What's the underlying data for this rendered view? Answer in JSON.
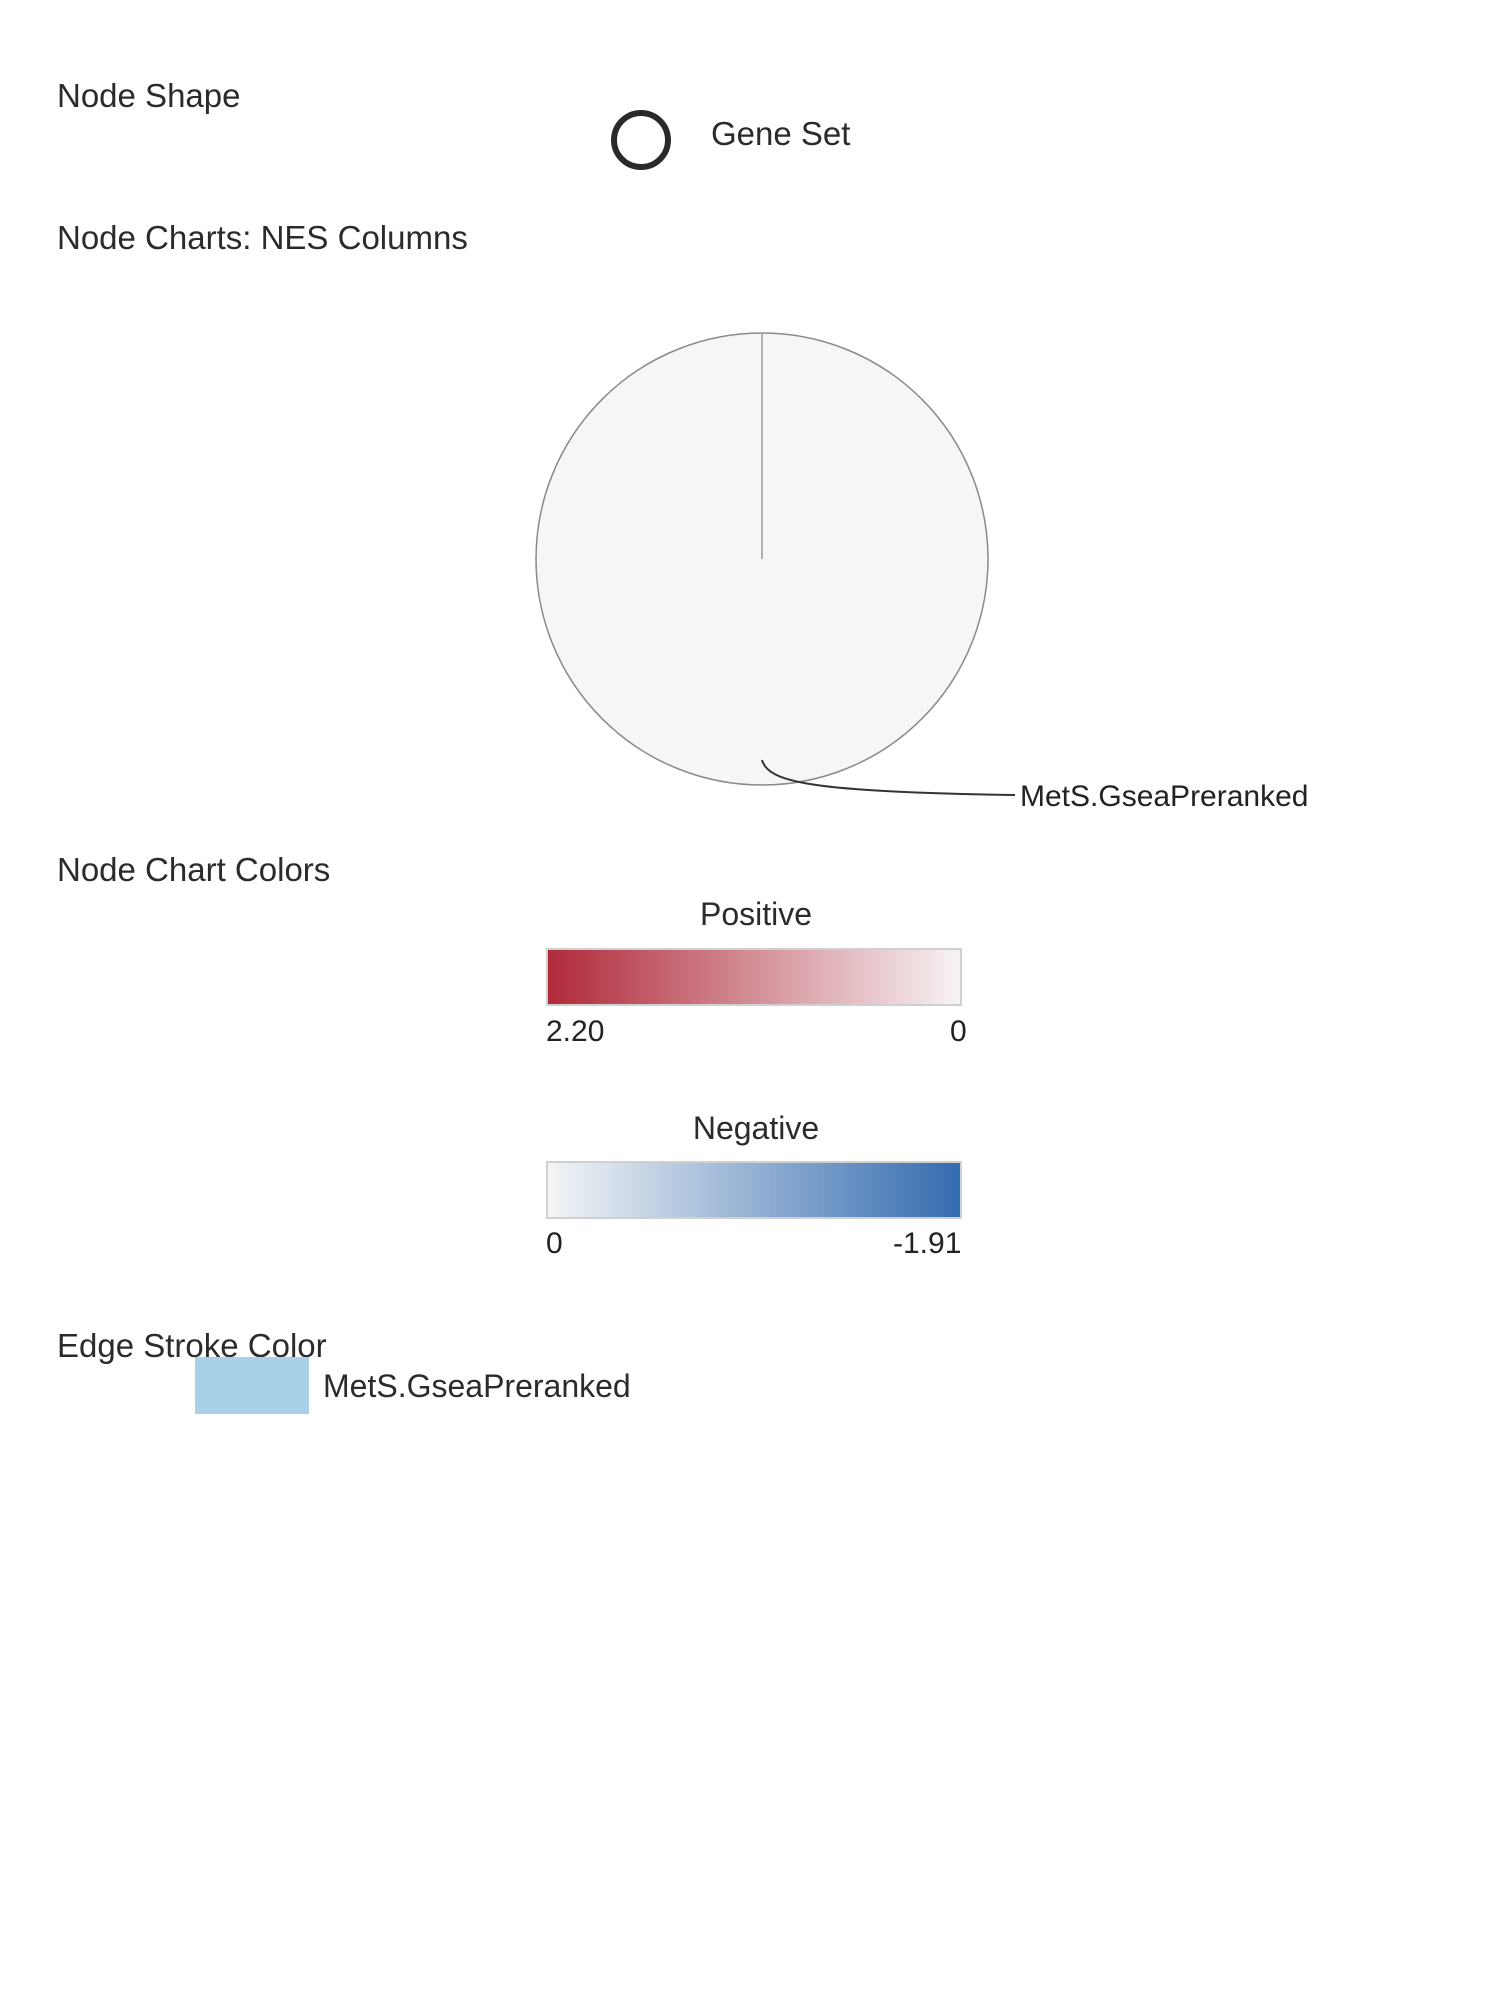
{
  "sections": {
    "node_shape": "Node Shape",
    "node_charts": "Node Charts: NES Columns",
    "node_chart_colors": "Node Chart Colors",
    "edge_stroke_color": "Edge Stroke Color"
  },
  "node_shape": {
    "label": "Gene Set",
    "icon": "circle-outline-icon"
  },
  "pie": {
    "label": "MetS.GseaPreranked",
    "fill": "#f5f6f5",
    "stroke": "#8a8a8a"
  },
  "positive": {
    "title": "Positive",
    "max_label": "2.20",
    "zero_label": "0",
    "color_start": "#b02a3a",
    "color_end": "#f7f3f4"
  },
  "negative": {
    "title": "Negative",
    "zero_label": "0",
    "min_label": "-1.91",
    "color_start": "#f4f5f6",
    "color_end": "#346cb0"
  },
  "edge": {
    "label": "MetS.GseaPreranked",
    "color": "#a8d0e6"
  }
}
